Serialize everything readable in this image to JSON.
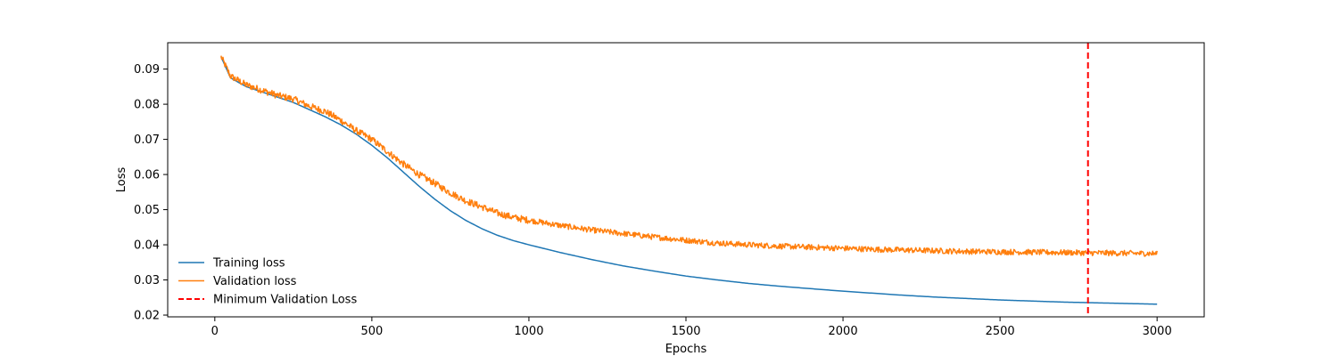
{
  "chart_data": {
    "type": "line",
    "title": "",
    "xlabel": "Epochs",
    "ylabel": "Loss",
    "xlim": [
      -150,
      3150
    ],
    "ylim": [
      0.0195,
      0.0975
    ],
    "grid": false,
    "legend_position": "lower-left",
    "x_ticks": [
      0,
      500,
      1000,
      1500,
      2000,
      2500,
      3000
    ],
    "x_tick_labels": [
      "0",
      "500",
      "1000",
      "1500",
      "2000",
      "2500",
      "3000"
    ],
    "y_ticks": [
      0.02,
      0.03,
      0.04,
      0.05,
      0.06,
      0.07,
      0.08,
      0.09
    ],
    "y_tick_labels": [
      "0.02",
      "0.03",
      "0.04",
      "0.05",
      "0.06",
      "0.07",
      "0.08",
      "0.09"
    ],
    "series": [
      {
        "name": "Training loss",
        "color": "#1f77b4",
        "style": "solid",
        "x": [
          20,
          50,
          100,
          150,
          200,
          250,
          300,
          350,
          400,
          450,
          500,
          550,
          600,
          650,
          700,
          750,
          800,
          850,
          900,
          950,
          1000,
          1100,
          1200,
          1300,
          1400,
          1500,
          1600,
          1700,
          1800,
          1900,
          2000,
          2100,
          2200,
          2300,
          2400,
          2500,
          2600,
          2700,
          2800,
          2900,
          3000
        ],
        "y": [
          0.0935,
          0.0875,
          0.085,
          0.0835,
          0.082,
          0.0805,
          0.0785,
          0.0765,
          0.0742,
          0.0715,
          0.0683,
          0.0647,
          0.0607,
          0.0567,
          0.053,
          0.0497,
          0.0469,
          0.0446,
          0.0427,
          0.0412,
          0.04,
          0.0378,
          0.0358,
          0.034,
          0.0325,
          0.0311,
          0.03,
          0.029,
          0.0282,
          0.0275,
          0.0268,
          0.0262,
          0.0256,
          0.0251,
          0.0247,
          0.0243,
          0.024,
          0.0237,
          0.0235,
          0.0233,
          0.0231
        ]
      },
      {
        "name": "Validation loss",
        "color": "#ff7f0e",
        "style": "solid",
        "x": [
          20,
          50,
          100,
          150,
          200,
          250,
          300,
          350,
          400,
          450,
          500,
          550,
          600,
          650,
          700,
          750,
          800,
          850,
          900,
          950,
          1000,
          1100,
          1200,
          1300,
          1400,
          1500,
          1600,
          1700,
          1800,
          1900,
          2000,
          2100,
          2200,
          2300,
          2400,
          2500,
          2600,
          2700,
          2800,
          2900,
          3000
        ],
        "y": [
          0.0935,
          0.088,
          0.0855,
          0.084,
          0.0825,
          0.0815,
          0.0795,
          0.078,
          0.0755,
          0.0725,
          0.07,
          0.0665,
          0.063,
          0.06,
          0.0575,
          0.0548,
          0.0525,
          0.0508,
          0.049,
          0.0478,
          0.047,
          0.0455,
          0.0442,
          0.0432,
          0.0422,
          0.0413,
          0.0405,
          0.04,
          0.0396,
          0.0393,
          0.039,
          0.0387,
          0.0385,
          0.0383,
          0.0381,
          0.038,
          0.0379,
          0.0378,
          0.0377,
          0.0376,
          0.0375
        ],
        "noise_amplitude": 0.0008
      },
      {
        "name": "Minimum Validation Loss",
        "color": "#ff0000",
        "style": "dashed",
        "vline_x": 2780
      }
    ]
  }
}
